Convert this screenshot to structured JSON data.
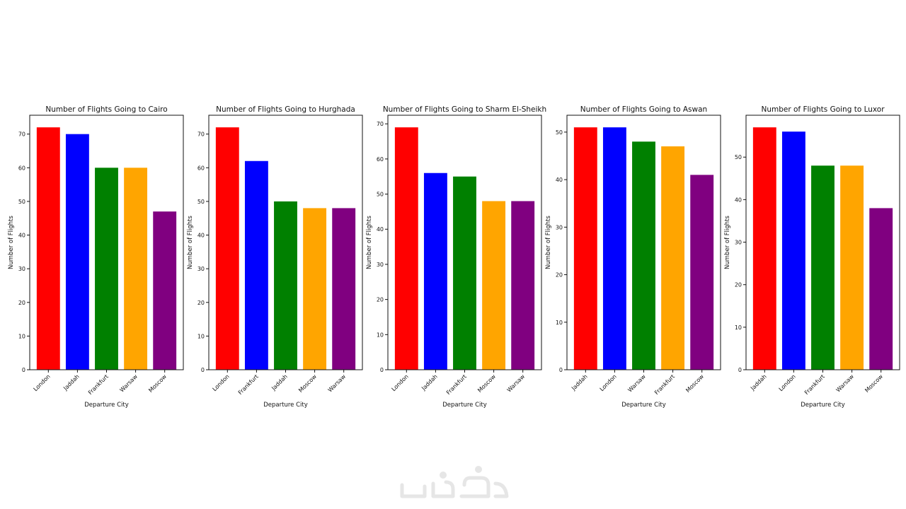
{
  "chart_data": [
    {
      "type": "bar",
      "title": "Number of Flights Going to Cairo",
      "xlabel": "Departure City",
      "ylabel": "Number of Flights",
      "categories": [
        "London",
        "Jaddah",
        "Frankfurt",
        "Warsaw",
        "Moscow"
      ],
      "values": [
        72,
        70,
        60,
        60,
        47
      ],
      "colors": [
        "#ff0000",
        "#0000ff",
        "#008000",
        "#ffa500",
        "#800080"
      ],
      "ylim": [
        0,
        75.6
      ],
      "yticks": [
        0,
        10,
        20,
        30,
        40,
        50,
        60,
        70
      ]
    },
    {
      "type": "bar",
      "title": "Number of Flights Going to Hurghada",
      "xlabel": "Departure City",
      "ylabel": "Number of Flights",
      "categories": [
        "London",
        "Frankfurt",
        "Jaddah",
        "Moscow",
        "Warsaw"
      ],
      "values": [
        72,
        62,
        50,
        48,
        48
      ],
      "colors": [
        "#ff0000",
        "#0000ff",
        "#008000",
        "#ffa500",
        "#800080"
      ],
      "ylim": [
        0,
        75.6
      ],
      "yticks": [
        0,
        10,
        20,
        30,
        40,
        50,
        60,
        70
      ]
    },
    {
      "type": "bar",
      "title": "Number of Flights Going to Sharm El-Sheikh",
      "xlabel": "Departure City",
      "ylabel": "Number of Flights",
      "categories": [
        "London",
        "Jaddah",
        "Frankfurt",
        "Moscow",
        "Warsaw"
      ],
      "values": [
        69,
        56,
        55,
        48,
        48
      ],
      "colors": [
        "#ff0000",
        "#0000ff",
        "#008000",
        "#ffa500",
        "#800080"
      ],
      "ylim": [
        0,
        72.45
      ],
      "yticks": [
        0,
        10,
        20,
        30,
        40,
        50,
        60,
        70
      ]
    },
    {
      "type": "bar",
      "title": "Number of Flights Going to Aswan",
      "xlabel": "Departure City",
      "ylabel": "Number of Flights",
      "categories": [
        "Jaddah",
        "London",
        "Warsaw",
        "Frankfurt",
        "Moscow"
      ],
      "values": [
        51,
        51,
        48,
        47,
        41
      ],
      "colors": [
        "#ff0000",
        "#0000ff",
        "#008000",
        "#ffa500",
        "#800080"
      ],
      "ylim": [
        0,
        53.55
      ],
      "yticks": [
        0,
        10,
        20,
        30,
        40,
        50
      ]
    },
    {
      "type": "bar",
      "title": "Number of Flights Going to Luxor",
      "xlabel": "Departure City",
      "ylabel": "Number of Flights",
      "categories": [
        "Jaddah",
        "London",
        "Frankfurt",
        "Warsaw",
        "Moscow"
      ],
      "values": [
        57,
        56,
        48,
        48,
        38
      ],
      "colors": [
        "#ff0000",
        "#0000ff",
        "#008000",
        "#ffa500",
        "#800080"
      ],
      "ylim": [
        0,
        59.85
      ],
      "yticks": [
        0,
        10,
        20,
        30,
        40,
        50
      ]
    }
  ],
  "watermark": {
    "color": "#e6e6e6"
  }
}
